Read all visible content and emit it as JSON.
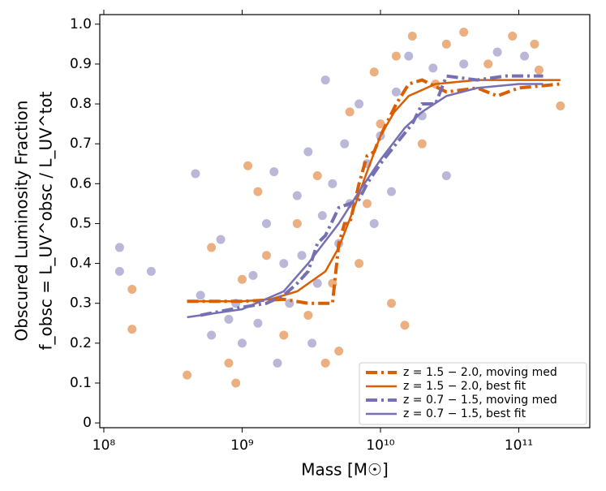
{
  "chart_data": {
    "type": "scatter",
    "xlabel": "Mass [M☉]",
    "ylabel": "Obscured Luminosity Fraction",
    "ylabel2": "f_obsc = L_UV^obsc / L_UV^tot",
    "xscale": "log",
    "xlim": [
      93500000.0,
      326000000000.0
    ],
    "ylim": [
      -0.012,
      1.024
    ],
    "xticks": [
      {
        "value": 100000000,
        "label": "10⁸"
      },
      {
        "value": 1000000000,
        "label": "10⁹"
      },
      {
        "value": 10000000000,
        "label": "10¹⁰"
      },
      {
        "value": 100000000000,
        "label": "10¹¹"
      }
    ],
    "yticks": [
      0,
      0.1,
      0.2,
      0.3,
      0.4,
      0.5,
      0.6,
      0.7,
      0.8,
      0.9,
      {
        "value": 1,
        "label": "1.0"
      }
    ],
    "legend": "lower right",
    "series": [
      {
        "kind": "points",
        "color": "#d95f02",
        "x": [
          160000000.0,
          160000000.0,
          400000000.0,
          600000000.0,
          800000000.0,
          900000000.0,
          1000000000.0,
          1100000000.0,
          1300000000.0,
          1500000000.0,
          2000000000.0,
          2500000000.0,
          3000000000.0,
          3500000000.0,
          4000000000.0,
          4500000000.0,
          5000000000.0,
          6000000000.0,
          7000000000.0,
          8000000000.0,
          9000000000.0,
          10000000000.0,
          12000000000.0,
          13000000000.0,
          15000000000.0,
          17000000000.0,
          20000000000.0,
          25000000000.0,
          30000000000.0,
          40000000000.0,
          60000000000.0,
          90000000000.0,
          130000000000.0,
          200000000000.0,
          140000000000.0
        ],
        "values": [
          0.335,
          0.235,
          0.12,
          0.44,
          0.15,
          0.1,
          0.36,
          0.645,
          0.58,
          0.42,
          0.22,
          0.5,
          0.27,
          0.62,
          0.15,
          0.35,
          0.18,
          0.78,
          0.4,
          0.55,
          0.88,
          0.75,
          0.3,
          0.92,
          0.245,
          0.97,
          0.7,
          0.85,
          0.95,
          0.98,
          0.9,
          0.97,
          0.95,
          0.795,
          0.885
        ]
      },
      {
        "kind": "points",
        "color": "#7570b3",
        "x": [
          130000000.0,
          130000000.0,
          220000000.0,
          460000000.0,
          500000000.0,
          600000000.0,
          700000000.0,
          800000000.0,
          900000000.0,
          1000000000.0,
          1200000000.0,
          1300000000.0,
          1500000000.0,
          1700000000.0,
          1800000000.0,
          2000000000.0,
          2200000000.0,
          2500000000.0,
          2700000000.0,
          3000000000.0,
          3200000000.0,
          3500000000.0,
          3800000000.0,
          4000000000.0,
          4500000000.0,
          5000000000.0,
          5500000000.0,
          6000000000.0,
          7000000000.0,
          8000000000.0,
          9000000000.0,
          10000000000.0,
          12000000000.0,
          13000000000.0,
          16000000000.0,
          20000000000.0,
          24000000000.0,
          30000000000.0,
          40000000000.0,
          70000000000.0,
          110000000000.0
        ],
        "values": [
          0.44,
          0.38,
          0.38,
          0.625,
          0.32,
          0.22,
          0.46,
          0.26,
          0.3,
          0.2,
          0.37,
          0.25,
          0.5,
          0.63,
          0.15,
          0.4,
          0.3,
          0.57,
          0.42,
          0.68,
          0.2,
          0.35,
          0.52,
          0.86,
          0.6,
          0.45,
          0.7,
          0.55,
          0.8,
          0.65,
          0.5,
          0.72,
          0.58,
          0.83,
          0.92,
          0.77,
          0.89,
          0.62,
          0.9,
          0.93,
          0.92
        ]
      },
      {
        "kind": "dashed",
        "name": "z = 1.5 − 2.0, moving med",
        "color": "#d95f02",
        "x": [
          400000000.0,
          1000000000.0,
          2000000000.0,
          3000000000.0,
          4000000000.0,
          4500000000.0,
          5000000000.0,
          5500000000.0,
          6000000000.0,
          7000000000.0,
          8000000000.0,
          9000000000.0,
          10000000000.0,
          13000000000.0,
          16000000000.0,
          20000000000.0,
          30000000000.0,
          50000000000.0,
          70000000000.0,
          100000000000.0,
          200000000000.0
        ],
        "values": [
          0.305,
          0.305,
          0.31,
          0.3,
          0.3,
          0.3,
          0.45,
          0.5,
          0.5,
          0.6,
          0.67,
          0.68,
          0.72,
          0.8,
          0.85,
          0.86,
          0.83,
          0.84,
          0.82,
          0.84,
          0.85
        ]
      },
      {
        "kind": "solid",
        "name": "z = 1.5 − 2.0, best fit",
        "color": "#d95f02",
        "x": [
          400000000.0,
          1000000000.0,
          1600000000.0,
          2500000000.0,
          4000000000.0,
          5000000000.0,
          6300000000.0,
          8000000000.0,
          10000000000.0,
          12600000000.0,
          16000000000.0,
          25000000000.0,
          50000000000.0,
          200000000000.0
        ],
        "values": [
          0.305,
          0.305,
          0.31,
          0.33,
          0.38,
          0.44,
          0.53,
          0.63,
          0.72,
          0.78,
          0.82,
          0.85,
          0.86,
          0.86
        ]
      },
      {
        "kind": "dashed",
        "name": "z = 0.7 − 1.5, moving med",
        "color": "#7570b3",
        "x": [
          500000000.0,
          700000000.0,
          1000000000.0,
          1500000000.0,
          2000000000.0,
          2500000000.0,
          3000000000.0,
          3500000000.0,
          4000000000.0,
          5000000000.0,
          6000000000.0,
          7000000000.0,
          8000000000.0,
          10000000000.0,
          13000000000.0,
          17000000000.0,
          20000000000.0,
          25000000000.0,
          30000000000.0,
          50000000000.0,
          80000000000.0,
          150000000000.0
        ],
        "values": [
          0.27,
          0.28,
          0.29,
          0.3,
          0.32,
          0.35,
          0.38,
          0.45,
          0.47,
          0.54,
          0.55,
          0.56,
          0.6,
          0.65,
          0.7,
          0.75,
          0.8,
          0.8,
          0.87,
          0.86,
          0.87,
          0.87
        ]
      },
      {
        "kind": "solid",
        "name": "z = 0.7 − 1.5, best fit",
        "color": "#7570b3",
        "x": [
          400000000.0,
          1000000000.0,
          2000000000.0,
          3000000000.0,
          5000000000.0,
          7000000000.0,
          10000000000.0,
          15000000000.0,
          20000000000.0,
          30000000000.0,
          50000000000.0,
          100000000000.0,
          150000000000.0
        ],
        "values": [
          0.265,
          0.285,
          0.33,
          0.4,
          0.5,
          0.58,
          0.66,
          0.74,
          0.78,
          0.82,
          0.84,
          0.85,
          0.85
        ]
      }
    ]
  }
}
